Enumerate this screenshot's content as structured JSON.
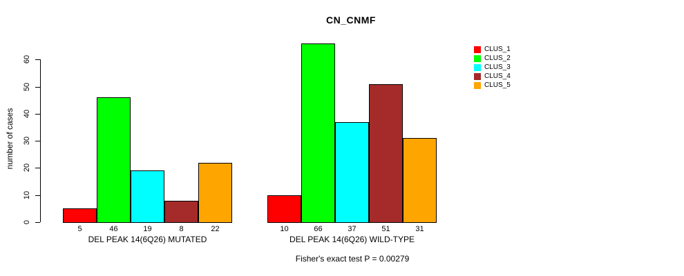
{
  "chart_data": {
    "type": "bar",
    "title": "CN_CNMF",
    "ylabel": "number of cases",
    "xlabel": "",
    "subtitle": "Fisher's exact test P = 0.00279",
    "ylim": [
      0,
      60
    ],
    "yticks": [
      0,
      10,
      20,
      30,
      40,
      50,
      60
    ],
    "grid": false,
    "legend_position": "top-right",
    "series_colors": [
      "#FF0000",
      "#00FF00",
      "#00FFFF",
      "#A52A2A",
      "#FFA500"
    ],
    "legend": [
      {
        "label": "CLUS_1",
        "color": "#FF0000"
      },
      {
        "label": "CLUS_2",
        "color": "#00FF00"
      },
      {
        "label": "CLUS_3",
        "color": "#00FFFF"
      },
      {
        "label": "CLUS_4",
        "color": "#A52A2A"
      },
      {
        "label": "CLUS_5",
        "color": "#FFA500"
      }
    ],
    "groups": [
      {
        "label": "DEL PEAK 14(6Q26) MUTATED",
        "bar_value_labels": [
          "5",
          "46",
          "19",
          "8",
          "22"
        ],
        "values": [
          5,
          46,
          19,
          8,
          22
        ]
      },
      {
        "label": "DEL PEAK 14(6Q26) WILD-TYPE",
        "bar_value_labels": [
          "10",
          "66",
          "37",
          "51",
          "31"
        ],
        "values": [
          10,
          66,
          37,
          51,
          31
        ]
      }
    ]
  }
}
